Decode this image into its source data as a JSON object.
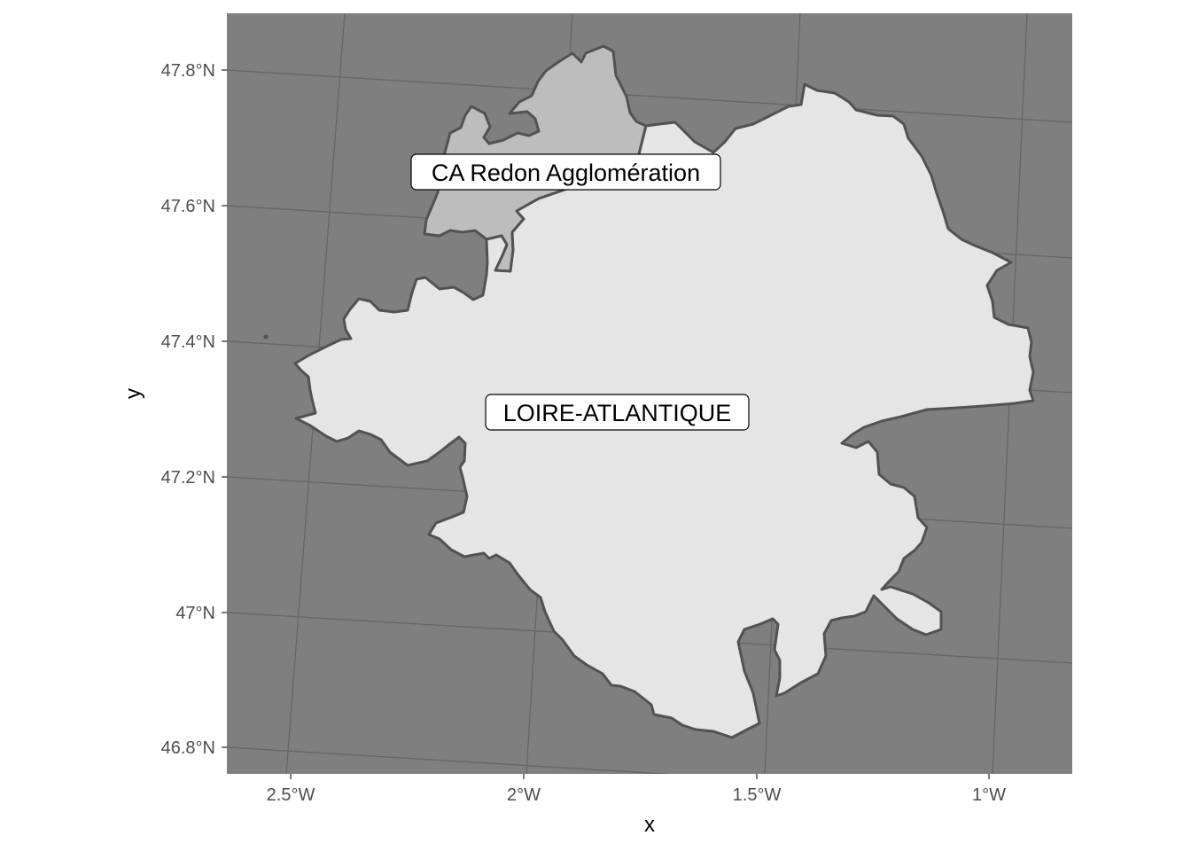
{
  "axes": {
    "xlabel": "x",
    "ylabel": "y",
    "x_ticks": [
      "2.5°W",
      "2°W",
      "1.5°W",
      "1°W"
    ],
    "y_ticks": [
      "47.8°N",
      "47.6°N",
      "47.4°N",
      "47.2°N",
      "47°N",
      "46.8°N"
    ]
  },
  "regions": [
    {
      "name": "CA Redon Agglomération",
      "fill": "#bdbdbd"
    },
    {
      "name": "LOIRE-ATLANTIQUE",
      "fill": "#e5e5e5"
    }
  ],
  "colors": {
    "panel_background": "#7f7f7f",
    "border": "#525252",
    "graticule": "#666666",
    "label_background": "#ffffff"
  }
}
